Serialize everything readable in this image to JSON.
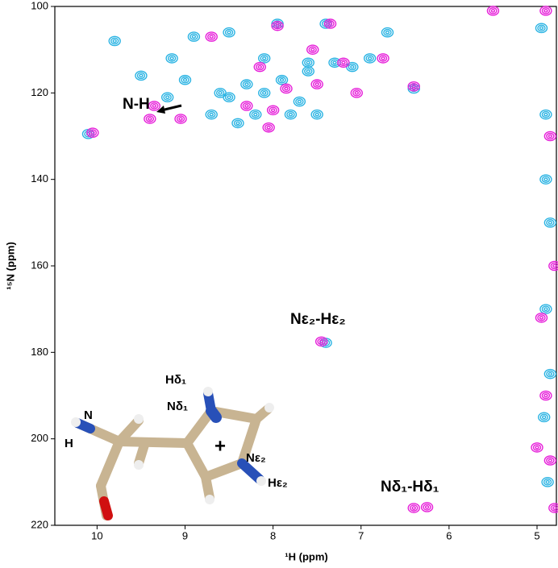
{
  "chart_data": {
    "type": "scatter",
    "x_label": "¹H (ppm)",
    "y_label": "¹⁵N (ppm)",
    "xlim": [
      4.78,
      10.48
    ],
    "x_inverted": true,
    "ylim": [
      100,
      220
    ],
    "y_inverted": true,
    "xticks": [
      10,
      9,
      8,
      7,
      6,
      5
    ],
    "yticks": [
      100,
      120,
      140,
      160,
      180,
      200,
      220
    ],
    "series": [
      {
        "color": "#29b3e3",
        "x": [
          10.1,
          9.5,
          9.0,
          8.7,
          8.5,
          8.3,
          8.1,
          7.9,
          7.7,
          7.6,
          7.8,
          8.4,
          8.6,
          8.9,
          8.5,
          8.1,
          7.6,
          7.3,
          7.1,
          6.9,
          6.7,
          6.4,
          7.95,
          7.4,
          9.15,
          8.2,
          7.5,
          7.4,
          9.8,
          9.2,
          4.95,
          4.9,
          4.85,
          4.9,
          4.92,
          4.88,
          4.9,
          4.85
        ],
        "y": [
          129.5,
          116,
          117,
          125,
          121,
          118,
          120,
          117,
          122,
          115,
          125,
          127,
          120,
          107,
          106,
          112,
          113,
          113,
          114,
          112,
          106,
          119,
          104,
          104,
          112,
          125,
          125,
          177.8,
          108,
          121,
          105,
          125,
          150,
          170,
          195,
          210,
          140,
          185
        ]
      },
      {
        "color": "#e61ed9",
        "x": [
          10.05,
          9.35,
          9.4,
          9.05,
          8.7,
          8.0,
          8.3,
          7.85,
          7.5,
          7.05,
          6.75,
          6.4,
          7.95,
          7.35,
          8.15,
          7.2,
          8.05,
          7.55,
          7.45,
          6.25,
          6.4,
          5.5,
          4.9,
          4.85,
          4.8,
          4.95,
          4.9,
          4.85,
          4.8,
          5.0
        ],
        "y": [
          129.2,
          123,
          126,
          126,
          107,
          124,
          123,
          119,
          118,
          120,
          112,
          118.5,
          104.5,
          104,
          114,
          113,
          128,
          110,
          177.5,
          215.8,
          216,
          101,
          101,
          130,
          160,
          172,
          190,
          205,
          216,
          202
        ]
      }
    ],
    "annotations": [
      "N-H",
      "Nε₂-Hε₂",
      "Nδ₁-Hδ₁"
    ],
    "molecule_labels": [
      "Hδ₁",
      "Nδ₁",
      "N",
      "H",
      "Nε₂",
      "Hε₂",
      "+"
    ]
  }
}
